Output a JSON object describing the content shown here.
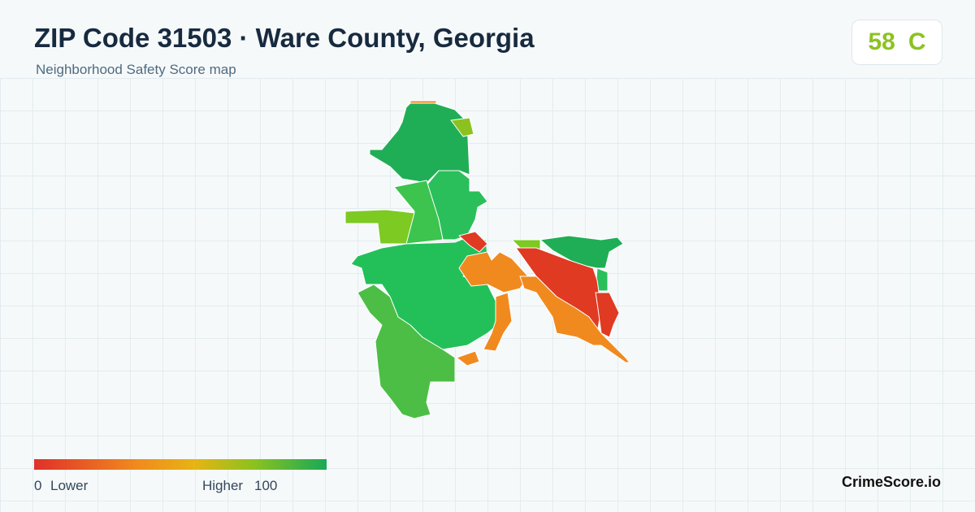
{
  "header": {
    "title": "ZIP Code 31503 · Ware County, Georgia",
    "subtitle": "Neighborhood Safety Score map"
  },
  "badge": {
    "score": 58,
    "grade": "C"
  },
  "legend": {
    "min": 0,
    "min_label": "Lower",
    "max_label": "Higher",
    "max": 100
  },
  "footer": {
    "brand": "CrimeScore.io"
  }
}
